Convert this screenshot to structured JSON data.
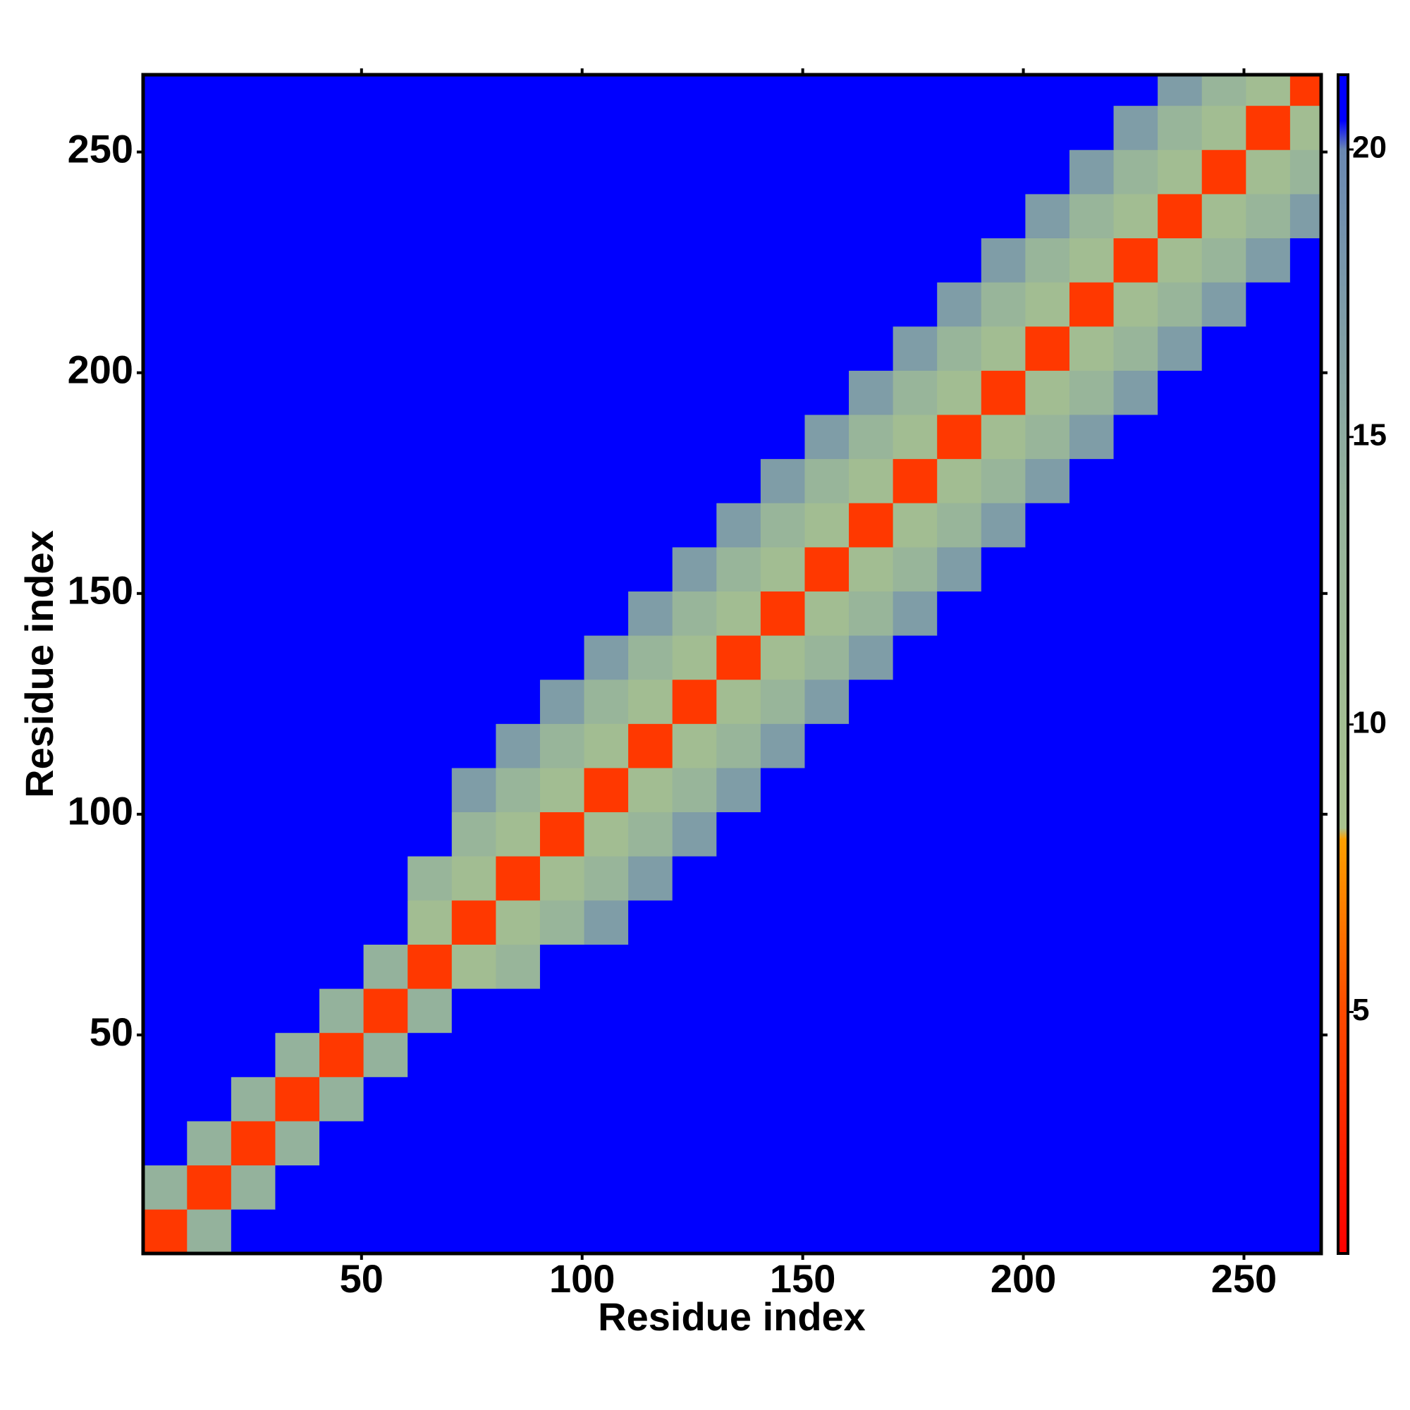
{
  "chart_data": {
    "type": "heatmap",
    "xlabel": "Residue index",
    "ylabel": "Residue index",
    "xlim": [
      0.5,
      267.5
    ],
    "ylim": [
      0.5,
      267.5
    ],
    "xticks": [
      50,
      100,
      150,
      200,
      250
    ],
    "yticks": [
      50,
      100,
      150,
      200,
      250
    ],
    "x_bins": [
      0.5,
      10.5,
      20.5,
      30.5,
      40.5,
      50.5,
      60.5,
      70.5,
      80.5,
      90.5,
      100.5,
      110.5,
      120.5,
      130.5,
      140.5,
      150.5,
      160.5,
      170.5,
      180.5,
      190.5,
      200.5,
      210.5,
      220.5,
      230.5,
      240.5,
      250.5,
      260.5,
      267.5
    ],
    "y_bins": [
      0.5,
      10.5,
      20.5,
      30.5,
      40.5,
      50.5,
      60.5,
      70.5,
      80.5,
      90.5,
      100.5,
      110.5,
      120.5,
      130.5,
      140.5,
      150.5,
      160.5,
      170.5,
      180.5,
      190.5,
      200.5,
      210.5,
      220.5,
      230.5,
      240.5,
      250.5,
      260.5,
      267.5
    ],
    "values": [
      [
        4,
        14,
        21,
        21,
        21,
        21,
        21,
        21,
        21,
        21,
        21,
        21,
        21,
        21,
        21,
        21,
        21,
        21,
        21,
        21,
        21,
        21,
        21,
        21,
        21,
        21,
        21
      ],
      [
        14,
        4,
        14,
        21,
        21,
        21,
        21,
        21,
        21,
        21,
        21,
        21,
        21,
        21,
        21,
        21,
        21,
        21,
        21,
        21,
        21,
        21,
        21,
        21,
        21,
        21,
        21
      ],
      [
        21,
        14,
        4,
        14,
        21,
        21,
        21,
        21,
        21,
        21,
        21,
        21,
        21,
        21,
        21,
        21,
        21,
        21,
        21,
        21,
        21,
        21,
        21,
        21,
        21,
        21,
        21
      ],
      [
        21,
        21,
        14,
        4,
        14,
        21,
        21,
        21,
        21,
        21,
        21,
        21,
        21,
        21,
        21,
        21,
        21,
        21,
        21,
        21,
        21,
        21,
        21,
        21,
        21,
        21,
        21
      ],
      [
        21,
        21,
        21,
        14,
        4,
        14,
        21,
        21,
        21,
        21,
        21,
        21,
        21,
        21,
        21,
        21,
        21,
        21,
        21,
        21,
        21,
        21,
        21,
        21,
        21,
        21,
        21
      ],
      [
        21,
        21,
        21,
        21,
        14,
        4,
        14,
        21,
        21,
        21,
        21,
        21,
        21,
        21,
        21,
        21,
        21,
        21,
        21,
        21,
        21,
        21,
        21,
        21,
        21,
        21,
        21
      ],
      [
        21,
        21,
        21,
        21,
        21,
        14,
        4,
        10,
        13,
        21,
        21,
        21,
        21,
        21,
        21,
        21,
        21,
        21,
        21,
        21,
        21,
        21,
        21,
        21,
        21,
        21,
        21
      ],
      [
        21,
        21,
        21,
        21,
        21,
        21,
        10,
        4,
        10,
        13,
        17,
        21,
        21,
        21,
        21,
        21,
        21,
        21,
        21,
        21,
        21,
        21,
        21,
        21,
        21,
        21,
        21
      ],
      [
        21,
        21,
        21,
        21,
        21,
        21,
        13,
        10,
        4,
        10,
        13,
        17,
        21,
        21,
        21,
        21,
        21,
        21,
        21,
        21,
        21,
        21,
        21,
        21,
        21,
        21,
        21
      ],
      [
        21,
        21,
        21,
        21,
        21,
        21,
        21,
        13,
        10,
        4,
        10,
        13,
        17,
        21,
        21,
        21,
        21,
        21,
        21,
        21,
        21,
        21,
        21,
        21,
        21,
        21,
        21
      ],
      [
        21,
        21,
        21,
        21,
        21,
        21,
        21,
        17,
        13,
        10,
        4,
        10,
        13,
        17,
        21,
        21,
        21,
        21,
        21,
        21,
        21,
        21,
        21,
        21,
        21,
        21,
        21
      ],
      [
        21,
        21,
        21,
        21,
        21,
        21,
        21,
        21,
        17,
        13,
        10,
        4,
        10,
        13,
        17,
        21,
        21,
        21,
        21,
        21,
        21,
        21,
        21,
        21,
        21,
        21,
        21
      ],
      [
        21,
        21,
        21,
        21,
        21,
        21,
        21,
        21,
        21,
        17,
        13,
        10,
        4,
        10,
        13,
        17,
        21,
        21,
        21,
        21,
        21,
        21,
        21,
        21,
        21,
        21,
        21
      ],
      [
        21,
        21,
        21,
        21,
        21,
        21,
        21,
        21,
        21,
        21,
        17,
        13,
        10,
        4,
        10,
        13,
        17,
        21,
        21,
        21,
        21,
        21,
        21,
        21,
        21,
        21,
        21
      ],
      [
        21,
        21,
        21,
        21,
        21,
        21,
        21,
        21,
        21,
        21,
        21,
        17,
        13,
        10,
        4,
        10,
        13,
        17,
        21,
        21,
        21,
        21,
        21,
        21,
        21,
        21,
        21
      ],
      [
        21,
        21,
        21,
        21,
        21,
        21,
        21,
        21,
        21,
        21,
        21,
        21,
        17,
        13,
        10,
        4,
        10,
        13,
        17,
        21,
        21,
        21,
        21,
        21,
        21,
        21,
        21
      ],
      [
        21,
        21,
        21,
        21,
        21,
        21,
        21,
        21,
        21,
        21,
        21,
        21,
        21,
        17,
        13,
        10,
        4,
        10,
        13,
        17,
        21,
        21,
        21,
        21,
        21,
        21,
        21
      ],
      [
        21,
        21,
        21,
        21,
        21,
        21,
        21,
        21,
        21,
        21,
        21,
        21,
        21,
        21,
        17,
        13,
        10,
        4,
        10,
        13,
        17,
        21,
        21,
        21,
        21,
        21,
        21
      ],
      [
        21,
        21,
        21,
        21,
        21,
        21,
        21,
        21,
        21,
        21,
        21,
        21,
        21,
        21,
        21,
        17,
        13,
        10,
        4,
        10,
        13,
        17,
        21,
        21,
        21,
        21,
        21
      ],
      [
        21,
        21,
        21,
        21,
        21,
        21,
        21,
        21,
        21,
        21,
        21,
        21,
        21,
        21,
        21,
        21,
        17,
        13,
        10,
        4,
        10,
        13,
        17,
        21,
        21,
        21,
        21
      ],
      [
        21,
        21,
        21,
        21,
        21,
        21,
        21,
        21,
        21,
        21,
        21,
        21,
        21,
        21,
        21,
        21,
        21,
        17,
        13,
        10,
        4,
        10,
        13,
        17,
        21,
        21,
        21
      ],
      [
        21,
        21,
        21,
        21,
        21,
        21,
        21,
        21,
        21,
        21,
        21,
        21,
        21,
        21,
        21,
        21,
        21,
        21,
        17,
        13,
        10,
        4,
        10,
        13,
        17,
        21,
        21
      ],
      [
        21,
        21,
        21,
        21,
        21,
        21,
        21,
        21,
        21,
        21,
        21,
        21,
        21,
        21,
        21,
        21,
        21,
        21,
        21,
        17,
        13,
        10,
        4,
        10,
        13,
        17,
        21
      ],
      [
        21,
        21,
        21,
        21,
        21,
        21,
        21,
        21,
        21,
        21,
        21,
        21,
        21,
        21,
        21,
        21,
        21,
        21,
        21,
        21,
        17,
        13,
        10,
        4,
        10,
        13,
        17
      ],
      [
        21,
        21,
        21,
        21,
        21,
        21,
        21,
        21,
        21,
        21,
        21,
        21,
        21,
        21,
        21,
        21,
        21,
        21,
        21,
        21,
        21,
        17,
        13,
        10,
        4,
        10,
        13
      ],
      [
        21,
        21,
        21,
        21,
        21,
        21,
        21,
        21,
        21,
        21,
        21,
        21,
        21,
        21,
        21,
        21,
        21,
        21,
        21,
        21,
        21,
        21,
        17,
        13,
        10,
        4,
        10
      ],
      [
        21,
        21,
        21,
        21,
        21,
        21,
        21,
        21,
        21,
        21,
        21,
        21,
        21,
        21,
        21,
        21,
        21,
        21,
        21,
        21,
        21,
        21,
        21,
        17,
        13,
        10,
        4
      ]
    ],
    "colorscale": [
      [
        0.8,
        "#ff0000"
      ],
      [
        5,
        "#ff4a00"
      ],
      [
        8,
        "#ffa000"
      ],
      [
        8.2,
        "#a9c28e"
      ],
      [
        14,
        "#94b29c"
      ],
      [
        20,
        "#6a88b2"
      ],
      [
        20.5,
        "#0000ff"
      ],
      [
        21.3,
        "#0000ff"
      ]
    ],
    "colorbar": {
      "lim": [
        0.8,
        21.3
      ],
      "ticks": [
        5,
        10,
        15,
        20
      ]
    }
  }
}
